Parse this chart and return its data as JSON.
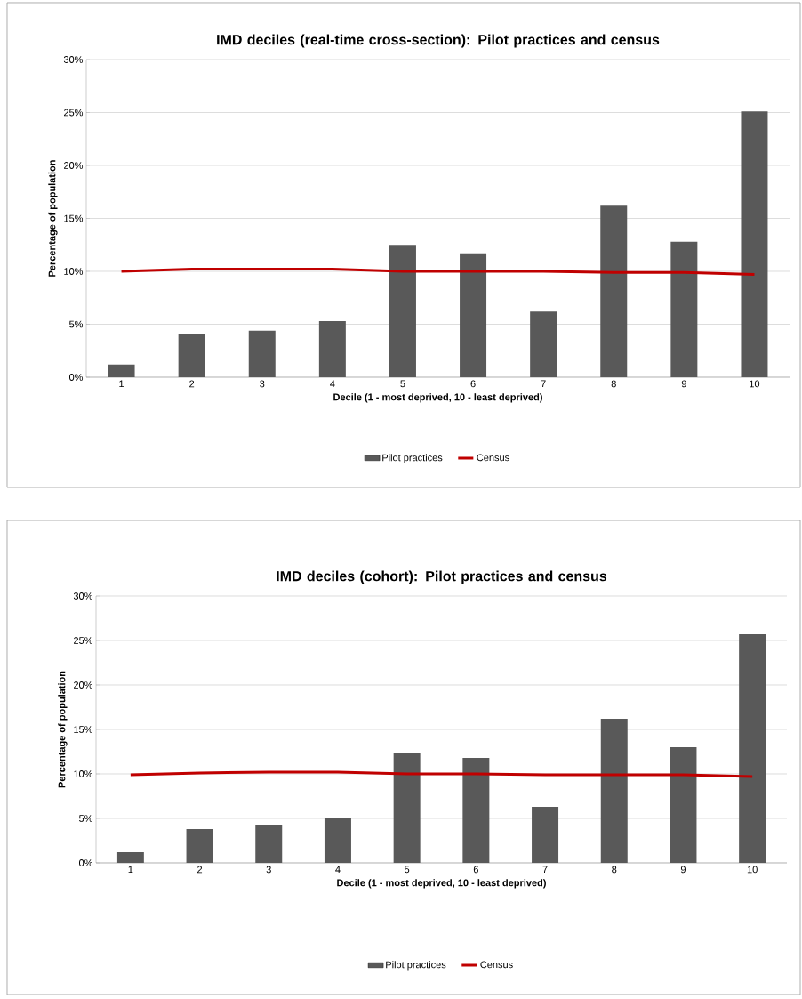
{
  "chart_data": [
    {
      "type": "bar",
      "title": "IMD deciles (real-time cross-section): Pilot practices and census",
      "xlabel": "Decile (1 - most deprived, 10 - least deprived)",
      "ylabel": "Percentage of population",
      "categories": [
        "1",
        "2",
        "3",
        "4",
        "5",
        "6",
        "7",
        "8",
        "9",
        "10"
      ],
      "series": [
        {
          "name": "Pilot practices",
          "color": "#595959",
          "values": [
            1.2,
            4.1,
            4.4,
            5.3,
            12.5,
            11.7,
            6.2,
            16.2,
            12.8,
            25.1
          ]
        },
        {
          "name": "Census",
          "type": "line",
          "color": "#c00000",
          "values": [
            10.0,
            10.2,
            10.2,
            10.2,
            10.0,
            10.0,
            10.0,
            9.9,
            9.9,
            9.7
          ]
        }
      ],
      "ylim": [
        0,
        30
      ],
      "yticks": [
        {
          "value": 0,
          "label": "0%"
        },
        {
          "value": 5,
          "label": "5%"
        },
        {
          "value": 10,
          "label": "10%"
        },
        {
          "value": 15,
          "label": "15%"
        },
        {
          "value": 20,
          "label": "20%"
        },
        {
          "value": 25,
          "label": "25%"
        },
        {
          "value": 30,
          "label": "30%"
        }
      ],
      "grid": "y",
      "legend": "bottom"
    },
    {
      "type": "bar",
      "title": "IMD deciles (cohort): Pilot practices and census",
      "xlabel": "Decile (1 - most deprived, 10 - least deprived)",
      "ylabel": "Percentage of population",
      "categories": [
        "1",
        "2",
        "3",
        "4",
        "5",
        "6",
        "7",
        "8",
        "9",
        "10"
      ],
      "series": [
        {
          "name": "Pilot practices",
          "color": "#595959",
          "values": [
            1.2,
            3.8,
            4.3,
            5.1,
            12.3,
            11.8,
            6.3,
            16.2,
            13.0,
            25.7
          ]
        },
        {
          "name": "Census",
          "type": "line",
          "color": "#c00000",
          "values": [
            9.9,
            10.1,
            10.2,
            10.2,
            10.0,
            10.0,
            9.9,
            9.9,
            9.9,
            9.7
          ]
        }
      ],
      "ylim": [
        0,
        30
      ],
      "yticks": [
        {
          "value": 0,
          "label": "0%"
        },
        {
          "value": 5,
          "label": "5%"
        },
        {
          "value": 10,
          "label": "10%"
        },
        {
          "value": 15,
          "label": "15%"
        },
        {
          "value": 20,
          "label": "20%"
        },
        {
          "value": 25,
          "label": "25%"
        },
        {
          "value": 30,
          "label": "30%"
        }
      ],
      "grid": "y",
      "legend": "bottom"
    }
  ]
}
